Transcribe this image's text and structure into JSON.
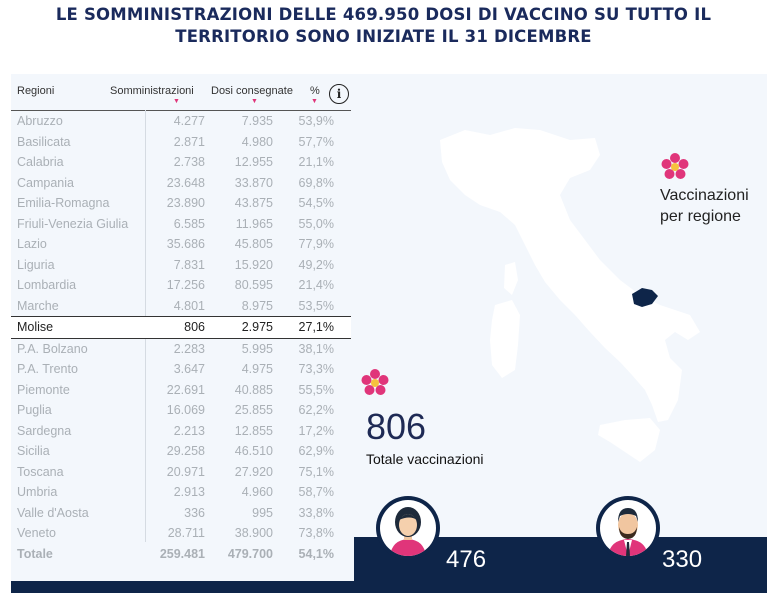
{
  "title": {
    "line1": "LE SOMMINISTRAZIONI DELLE 469.950 DOSI DI VACCINO SU TUTTO IL",
    "line2": "TERRITORIO SONO INIZIATE IL 31 DICEMBRE"
  },
  "table": {
    "headers": {
      "region": "Regioni",
      "administered": "Somministrazioni",
      "delivered": "Dosi consegnate",
      "percent": "%"
    },
    "sort_marker": "▼",
    "info_label": "i",
    "rows": [
      {
        "region": "Abruzzo",
        "administered": "4.277",
        "delivered": "7.935",
        "percent": "53,9%"
      },
      {
        "region": "Basilicata",
        "administered": "2.871",
        "delivered": "4.980",
        "percent": "57,7%"
      },
      {
        "region": "Calabria",
        "administered": "2.738",
        "delivered": "12.955",
        "percent": "21,1%"
      },
      {
        "region": "Campania",
        "administered": "23.648",
        "delivered": "33.870",
        "percent": "69,8%"
      },
      {
        "region": "Emilia-Romagna",
        "administered": "23.890",
        "delivered": "43.875",
        "percent": "54,5%"
      },
      {
        "region": "Friuli-Venezia Giulia",
        "administered": "6.585",
        "delivered": "11.965",
        "percent": "55,0%"
      },
      {
        "region": "Lazio",
        "administered": "35.686",
        "delivered": "45.805",
        "percent": "77,9%"
      },
      {
        "region": "Liguria",
        "administered": "7.831",
        "delivered": "15.920",
        "percent": "49,2%"
      },
      {
        "region": "Lombardia",
        "administered": "17.256",
        "delivered": "80.595",
        "percent": "21,4%"
      },
      {
        "region": "Marche",
        "administered": "4.801",
        "delivered": "8.975",
        "percent": "53,5%"
      },
      {
        "region": "Molise",
        "administered": "806",
        "delivered": "2.975",
        "percent": "27,1%",
        "selected": true
      },
      {
        "region": "P.A. Bolzano",
        "administered": "2.283",
        "delivered": "5.995",
        "percent": "38,1%"
      },
      {
        "region": "P.A. Trento",
        "administered": "3.647",
        "delivered": "4.975",
        "percent": "73,3%"
      },
      {
        "region": "Piemonte",
        "administered": "22.691",
        "delivered": "40.885",
        "percent": "55,5%"
      },
      {
        "region": "Puglia",
        "administered": "16.069",
        "delivered": "25.855",
        "percent": "62,2%"
      },
      {
        "region": "Sardegna",
        "administered": "2.213",
        "delivered": "12.855",
        "percent": "17,2%"
      },
      {
        "region": "Sicilia",
        "administered": "29.258",
        "delivered": "46.510",
        "percent": "62,9%"
      },
      {
        "region": "Toscana",
        "administered": "20.971",
        "delivered": "27.920",
        "percent": "75,1%"
      },
      {
        "region": "Umbria",
        "administered": "2.913",
        "delivered": "4.960",
        "percent": "58,7%"
      },
      {
        "region": "Valle d'Aosta",
        "administered": "336",
        "delivered": "995",
        "percent": "33,8%"
      },
      {
        "region": "Veneto",
        "administered": "28.711",
        "delivered": "38.900",
        "percent": "73,8%"
      }
    ],
    "total": {
      "region": "Totale",
      "administered": "259.481",
      "delivered": "479.700",
      "percent": "54,1%"
    }
  },
  "legend": {
    "line1": "Vaccinazioni",
    "line2": "per regione"
  },
  "summary": {
    "value": "806",
    "label": "Totale vaccinazioni"
  },
  "gender": {
    "female_count": "476",
    "male_count": "330"
  },
  "colors": {
    "accent": "#e0357a",
    "navy": "#0e2549",
    "title": "#1a2a5c",
    "map_highlight": "#0e2549"
  },
  "icons": {
    "flower": "flower-icon",
    "info": "info-icon",
    "female": "female-avatar-icon",
    "male": "male-avatar-icon"
  }
}
